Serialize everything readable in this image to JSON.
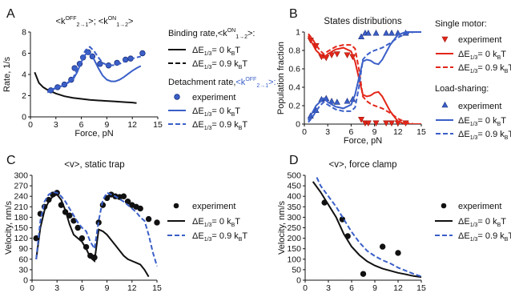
{
  "colors": {
    "blue": "#3a5fc8",
    "red": "#e32619",
    "black": "#111111",
    "marker_edge": "#1c2f7a"
  },
  "chart_data": [
    {
      "panel_label": "A",
      "type": "line",
      "title_parts": {
        "off": "<k",
        "off_sup": "OFF",
        "off_sub": "2→1",
        "sep": ">; <k",
        "on_sup": "ON",
        "on_sub": "1→2",
        "end": ">"
      },
      "xlabel": "Force, pN",
      "ylabel": "Rate, 1/s",
      "xlim": [
        0,
        15
      ],
      "ylim": [
        0,
        8
      ],
      "xticks": [
        0,
        3,
        6,
        9,
        12,
        15
      ],
      "yticks": [
        0,
        2,
        4,
        6,
        8
      ],
      "series": [
        {
          "name": "Binding rate ΔE = 0",
          "color": "black",
          "dash": "solid",
          "x": [
            0.5,
            1,
            1.5,
            2,
            3,
            4,
            5,
            6,
            7,
            8,
            9,
            10,
            11,
            12,
            12.5
          ],
          "y": [
            4.2,
            3.2,
            2.8,
            2.55,
            2.2,
            1.95,
            1.8,
            1.7,
            1.6,
            1.55,
            1.5,
            1.45,
            1.4,
            1.35,
            1.3
          ]
        },
        {
          "name": "experiment",
          "color": "blue",
          "marker": "circle",
          "x": [
            2.4,
            3.2,
            4,
            4.8,
            5.2,
            5.8,
            6.2,
            6.8,
            7.3,
            8.2,
            9.2,
            10.2,
            11.2,
            11.8,
            13.2
          ],
          "y": [
            2.5,
            2.8,
            3.05,
            3.5,
            4.6,
            5.0,
            5.6,
            6.1,
            5.7,
            5.0,
            4.85,
            5.1,
            5.4,
            5.5,
            6.0
          ]
        },
        {
          "name": "Detachment ΔE = 0",
          "color": "blue",
          "dash": "solid",
          "x": [
            2,
            3,
            4,
            5,
            5.5,
            6,
            6.5,
            7,
            7.5,
            8,
            8.5,
            9,
            9.5,
            10,
            10.5,
            11,
            11.5,
            12,
            12.5,
            13
          ],
          "y": [
            2.4,
            2.75,
            3.0,
            3.5,
            4.2,
            5.2,
            5.9,
            6.0,
            5.4,
            4.6,
            3.9,
            3.5,
            3.35,
            3.35,
            3.5,
            3.75,
            4.05,
            4.35,
            4.6,
            4.8
          ]
        },
        {
          "name": "Detachment ΔE = 0.9",
          "color": "blue",
          "dash": "dashed",
          "x": [
            2,
            3,
            4,
            5,
            5.5,
            6,
            6.5,
            7,
            7.5,
            8,
            8.5,
            9,
            9.5,
            10,
            10.5,
            11,
            11.5,
            12,
            12.5,
            13
          ],
          "y": [
            2.3,
            2.7,
            3.0,
            3.6,
            4.5,
            5.6,
            6.3,
            6.6,
            6.2,
            5.6,
            5.1,
            4.9,
            4.85,
            4.9,
            5.0,
            5.2,
            5.35,
            5.5,
            5.6,
            5.7
          ]
        }
      ],
      "legend": {
        "binding_title": "Binding rate,<k",
        "binding_title_sup": "ON",
        "binding_title_sub": "1→2",
        "binding_title_end": ">:",
        "detach_title": "Detachment rate,",
        "detach_title_colored": "<k",
        "detach_title_sup": "OFF",
        "detach_title_sub": "2→1",
        "detach_title_end": ">:",
        "experiment": "experiment",
        "de0": "= 0 k",
        "de09": "= 0.9 k",
        "delta_e": "ΔE",
        "delta_sub": "1/3",
        "kbt_sub": "B",
        "kbt_t": "T"
      }
    },
    {
      "panel_label": "B",
      "type": "line",
      "title": "States distributions",
      "xlabel": "Force, pN",
      "ylabel": "Population fraction",
      "xlim": [
        0,
        15
      ],
      "ylim": [
        0,
        1.0
      ],
      "xticks": [
        0,
        3,
        6,
        9,
        12,
        15
      ],
      "yticks": [
        0,
        0.2,
        0.4,
        0.6,
        0.8,
        1.0
      ],
      "series": [
        {
          "name": "single experiment",
          "color": "red",
          "marker": "triangle-down",
          "x": [
            0.8,
            1.5,
            2.2,
            2.8,
            3.5,
            4.2,
            5.5,
            6.2,
            7.3,
            7.8,
            8.2,
            9.2,
            10.5,
            11.2,
            12.0,
            13.0
          ],
          "y": [
            0.91,
            0.85,
            0.73,
            0.72,
            0.75,
            0.76,
            0.75,
            0.73,
            0.05,
            0.01,
            0.01,
            0.01,
            0.01,
            0.01,
            0.01,
            0.01
          ]
        },
        {
          "name": "single ΔE = 0",
          "color": "red",
          "dash": "solid",
          "x": [
            0.5,
            1,
            1.5,
            2,
            2.5,
            3,
            4,
            5,
            6,
            6.5,
            7,
            7.5,
            8,
            8.5,
            9,
            9.5,
            10,
            11,
            12,
            13,
            14,
            15
          ],
          "y": [
            0.96,
            0.88,
            0.8,
            0.76,
            0.72,
            0.76,
            0.81,
            0.83,
            0.79,
            0.68,
            0.5,
            0.32,
            0.3,
            0.31,
            0.34,
            0.35,
            0.3,
            0.14,
            0.03,
            0.0,
            0.0,
            0.0
          ]
        },
        {
          "name": "single ΔE = 0.9",
          "color": "red",
          "dash": "dashed",
          "x": [
            0.5,
            1,
            1.5,
            2,
            2.5,
            3,
            4,
            5,
            6,
            6.5,
            7,
            7.5,
            8,
            8.5,
            9,
            10,
            11,
            12,
            13,
            14,
            15
          ],
          "y": [
            0.98,
            0.93,
            0.86,
            0.8,
            0.76,
            0.79,
            0.84,
            0.86,
            0.86,
            0.82,
            0.6,
            0.3,
            0.25,
            0.22,
            0.2,
            0.17,
            0.12,
            0.06,
            0.02,
            0.0,
            0.0
          ]
        },
        {
          "name": "load experiment",
          "color": "blue",
          "marker": "triangle-up",
          "x": [
            0.8,
            1.5,
            2.2,
            2.8,
            3.5,
            4.2,
            5.5,
            6.2,
            7.3,
            7.8,
            8.2,
            9.2,
            10.5,
            11.2,
            12.0,
            13.0
          ],
          "y": [
            0.09,
            0.15,
            0.27,
            0.28,
            0.25,
            0.24,
            0.25,
            0.27,
            0.95,
            0.99,
            0.99,
            0.99,
            0.99,
            0.99,
            0.99,
            0.99
          ]
        },
        {
          "name": "load ΔE = 0",
          "color": "blue",
          "dash": "solid",
          "x": [
            0.5,
            1,
            1.5,
            2,
            2.5,
            3,
            4,
            5,
            6,
            6.5,
            7,
            7.5,
            8,
            8.5,
            9,
            9.5,
            10,
            11,
            12,
            13,
            14,
            15
          ],
          "y": [
            0.04,
            0.12,
            0.2,
            0.24,
            0.28,
            0.24,
            0.19,
            0.17,
            0.21,
            0.32,
            0.5,
            0.68,
            0.7,
            0.69,
            0.66,
            0.65,
            0.7,
            0.86,
            0.97,
            1.0,
            1.0,
            1.0
          ]
        },
        {
          "name": "load ΔE = 0.9",
          "color": "blue",
          "dash": "dashed",
          "x": [
            0.5,
            1,
            1.5,
            2,
            2.5,
            3,
            4,
            5,
            6,
            6.5,
            7,
            7.5,
            8,
            8.5,
            9,
            10,
            11,
            12,
            13,
            14,
            15
          ],
          "y": [
            0.02,
            0.07,
            0.14,
            0.2,
            0.24,
            0.21,
            0.16,
            0.14,
            0.14,
            0.18,
            0.4,
            0.7,
            0.75,
            0.78,
            0.8,
            0.83,
            0.88,
            0.94,
            0.98,
            1.0,
            1.0
          ]
        }
      ],
      "legend": {
        "single_title": "Single motor:",
        "load_title": "Load-sharing:",
        "experiment": "experiment",
        "de0": "= 0 k",
        "de09": "= 0.9 k",
        "delta_e": "ΔE",
        "delta_sub": "1/3",
        "kbt_sub": "B",
        "kbt_t": "T"
      }
    },
    {
      "panel_label": "C",
      "type": "line",
      "title": "<v>, static trap",
      "xlabel": "Force, pN",
      "ylabel": "Velocity, nm/s",
      "xlim": [
        0,
        15
      ],
      "ylim": [
        0,
        300
      ],
      "xticks": [
        0,
        3,
        6,
        9,
        12,
        15
      ],
      "yticks": [
        0,
        30,
        60,
        90,
        120,
        150,
        180,
        210,
        240,
        270,
        300
      ],
      "series": [
        {
          "name": "experiment",
          "color": "black",
          "marker": "circle",
          "x": [
            0.5,
            1,
            1.5,
            2,
            2.5,
            3,
            3.5,
            4,
            4.5,
            5,
            5.5,
            6,
            6.5,
            7,
            7.5,
            8,
            8.5,
            9,
            9.5,
            10,
            10.5,
            11,
            11.5,
            12,
            12.5,
            13,
            14,
            15
          ],
          "y": [
            120,
            190,
            210,
            230,
            245,
            250,
            215,
            195,
            185,
            170,
            150,
            120,
            95,
            70,
            65,
            165,
            215,
            235,
            245,
            240,
            238,
            240,
            225,
            215,
            210,
            205,
            175,
            165
          ]
        },
        {
          "name": "ΔE = 0",
          "color": "black",
          "dash": "solid",
          "x": [
            0.5,
            1,
            1.5,
            2,
            2.5,
            3,
            3.5,
            4,
            4.5,
            5,
            5.5,
            6,
            6.5,
            7,
            7.5,
            8,
            8.5,
            9,
            9.5,
            10,
            10.5,
            11,
            11.5,
            12,
            12.5,
            13,
            13.5,
            14
          ],
          "y": [
            60,
            150,
            200,
            225,
            240,
            245,
            230,
            200,
            160,
            130,
            120,
            110,
            90,
            65,
            55,
            145,
            140,
            130,
            115,
            100,
            85,
            70,
            60,
            55,
            50,
            45,
            30,
            10
          ]
        },
        {
          "name": "ΔE = 0.9",
          "color": "blue",
          "dash": "dashed",
          "x": [
            0.5,
            1,
            1.5,
            2,
            2.5,
            3,
            3.5,
            4,
            4.5,
            5,
            5.5,
            6,
            6.5,
            7,
            7.5,
            8,
            8.5,
            9,
            9.5,
            10,
            10.5,
            11,
            11.5,
            12,
            12.5,
            13,
            13.5,
            14,
            14.5,
            15
          ],
          "y": [
            60,
            170,
            225,
            245,
            252,
            250,
            240,
            225,
            205,
            185,
            165,
            150,
            140,
            110,
            90,
            170,
            230,
            250,
            245,
            240,
            232,
            225,
            215,
            205,
            195,
            180,
            170,
            130,
            80,
            40
          ]
        }
      ],
      "legend": {
        "experiment": "experiment",
        "de0": "= 0 k",
        "de09": "= 0.9 k",
        "delta_e": "ΔE",
        "delta_sub": "1/3",
        "kbt_sub": "B",
        "kbt_t": "T"
      }
    },
    {
      "panel_label": "D",
      "type": "line",
      "title": "<v>, force clamp",
      "xlabel": "Force, pN",
      "ylabel": "Velocity, nm/s",
      "xlim": [
        0,
        15
      ],
      "ylim": [
        0,
        500
      ],
      "xticks": [
        0,
        3,
        6,
        9,
        12,
        15
      ],
      "yticks": [
        0,
        50,
        100,
        150,
        200,
        250,
        300,
        350,
        400,
        450,
        500
      ],
      "series": [
        {
          "name": "experiment",
          "color": "black",
          "marker": "circle",
          "x": [
            2.5,
            4.8,
            5.5,
            7.5,
            10,
            12
          ],
          "y": [
            370,
            290,
            210,
            30,
            160,
            130
          ]
        },
        {
          "name": "ΔE = 0",
          "color": "black",
          "dash": "solid",
          "x": [
            1,
            2,
            3,
            4,
            5,
            6,
            7,
            8,
            9,
            10,
            11,
            12,
            13,
            14,
            15
          ],
          "y": [
            470,
            420,
            360,
            300,
            220,
            160,
            120,
            90,
            70,
            55,
            45,
            35,
            28,
            20,
            15
          ]
        },
        {
          "name": "ΔE = 0.9",
          "color": "blue",
          "dash": "dashed",
          "x": [
            1.5,
            2,
            3,
            4,
            5,
            6,
            7,
            8,
            9,
            10,
            11,
            12,
            13,
            14,
            15
          ],
          "y": [
            490,
            450,
            400,
            350,
            290,
            230,
            180,
            140,
            115,
            95,
            80,
            60,
            45,
            30,
            18
          ]
        }
      ],
      "legend": {
        "experiment": "experiment",
        "de0": "= 0 k",
        "de09": "= 0.9 k",
        "delta_e": "ΔE",
        "delta_sub": "1/3",
        "kbt_sub": "B",
        "kbt_t": "T"
      }
    }
  ]
}
